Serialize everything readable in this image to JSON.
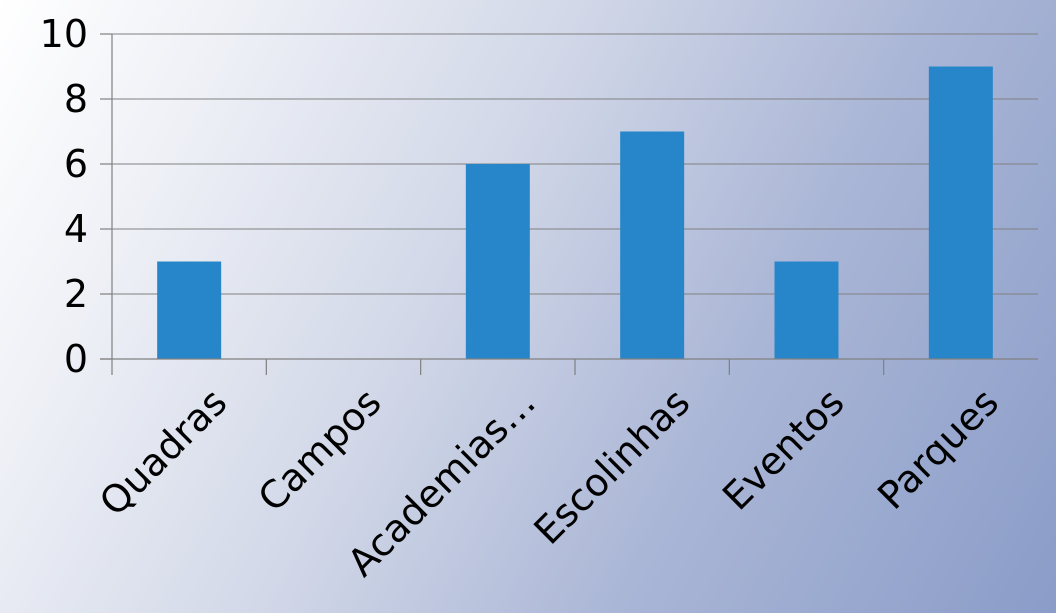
{
  "chart_data": {
    "type": "bar",
    "title": "",
    "xlabel": "",
    "ylabel": "",
    "categories": [
      "Quadras",
      "Campos",
      "Academias…",
      "Escolinhas",
      "Eventos",
      "Parques"
    ],
    "series": [
      {
        "values": [
          3,
          0,
          6,
          7,
          3,
          9
        ]
      }
    ],
    "ylim": [
      0,
      10
    ],
    "yticks": [
      "0",
      "2",
      "4",
      "6",
      "8",
      "10"
    ],
    "grid": true,
    "legend": "none",
    "colors": {
      "bar": "#2786c9",
      "grid": "#808080",
      "text": "#000000"
    }
  }
}
